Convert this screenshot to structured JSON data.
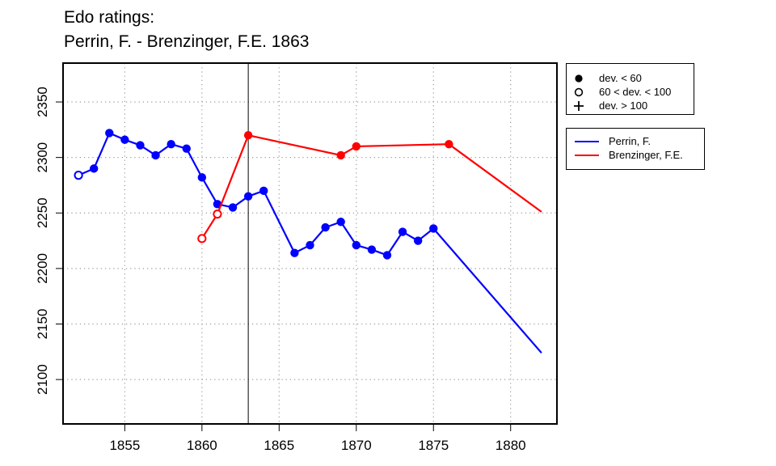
{
  "chart_data": {
    "type": "line",
    "title_lines": [
      "Edo ratings:",
      "Perrin, F. - Brenzinger, F.E. 1863"
    ],
    "xlabel": "",
    "ylabel": "",
    "xlim": [
      1851,
      1883
    ],
    "ylim": [
      2060,
      2385
    ],
    "x_ticks": [
      1855,
      1860,
      1865,
      1870,
      1875,
      1880
    ],
    "y_ticks": [
      2100,
      2150,
      2200,
      2250,
      2300,
      2350
    ],
    "grid": "dotted",
    "reference_line_x": 1863,
    "marker_legend": {
      "placement": "outside-right-top",
      "entries": [
        {
          "symbol": "filled-circle",
          "label": "dev. < 60"
        },
        {
          "symbol": "open-circle",
          "label": "60 < dev. < 100"
        },
        {
          "symbol": "plus",
          "label": "dev. > 100"
        }
      ]
    },
    "series_legend": {
      "placement": "outside-right",
      "entries": [
        {
          "label": "Perrin, F.",
          "color": "#0000ff"
        },
        {
          "label": "Brenzinger, F.E.",
          "color": "#ff0000"
        }
      ]
    },
    "series": [
      {
        "name": "Perrin, F.",
        "color": "#0000ff",
        "points": [
          {
            "x": 1852,
            "y": 2284,
            "marker": "open"
          },
          {
            "x": 1853,
            "y": 2290,
            "marker": "filled"
          },
          {
            "x": 1854,
            "y": 2322,
            "marker": "filled"
          },
          {
            "x": 1855,
            "y": 2316,
            "marker": "filled"
          },
          {
            "x": 1856,
            "y": 2311,
            "marker": "filled"
          },
          {
            "x": 1857,
            "y": 2302,
            "marker": "filled"
          },
          {
            "x": 1858,
            "y": 2312,
            "marker": "filled"
          },
          {
            "x": 1859,
            "y": 2308,
            "marker": "filled"
          },
          {
            "x": 1860,
            "y": 2282,
            "marker": "filled"
          },
          {
            "x": 1861,
            "y": 2258,
            "marker": "filled"
          },
          {
            "x": 1862,
            "y": 2255,
            "marker": "filled"
          },
          {
            "x": 1863,
            "y": 2265,
            "marker": "filled"
          },
          {
            "x": 1864,
            "y": 2270,
            "marker": "filled"
          },
          {
            "x": 1866,
            "y": 2214,
            "marker": "filled"
          },
          {
            "x": 1867,
            "y": 2221,
            "marker": "filled"
          },
          {
            "x": 1868,
            "y": 2237,
            "marker": "filled"
          },
          {
            "x": 1869,
            "y": 2242,
            "marker": "filled"
          },
          {
            "x": 1870,
            "y": 2221,
            "marker": "filled"
          },
          {
            "x": 1871,
            "y": 2217,
            "marker": "filled"
          },
          {
            "x": 1872,
            "y": 2212,
            "marker": "filled"
          },
          {
            "x": 1873,
            "y": 2233,
            "marker": "filled"
          },
          {
            "x": 1874,
            "y": 2225,
            "marker": "filled"
          },
          {
            "x": 1875,
            "y": 2236,
            "marker": "filled"
          },
          {
            "x": 1882,
            "y": 2124,
            "marker": "none"
          }
        ]
      },
      {
        "name": "Brenzinger, F.E.",
        "color": "#ff0000",
        "points": [
          {
            "x": 1860,
            "y": 2227,
            "marker": "open"
          },
          {
            "x": 1861,
            "y": 2249,
            "marker": "open"
          },
          {
            "x": 1863,
            "y": 2320,
            "marker": "filled"
          },
          {
            "x": 1869,
            "y": 2302,
            "marker": "filled"
          },
          {
            "x": 1870,
            "y": 2310,
            "marker": "filled"
          },
          {
            "x": 1876,
            "y": 2312,
            "marker": "filled"
          },
          {
            "x": 1882,
            "y": 2251,
            "marker": "none"
          }
        ]
      }
    ]
  }
}
